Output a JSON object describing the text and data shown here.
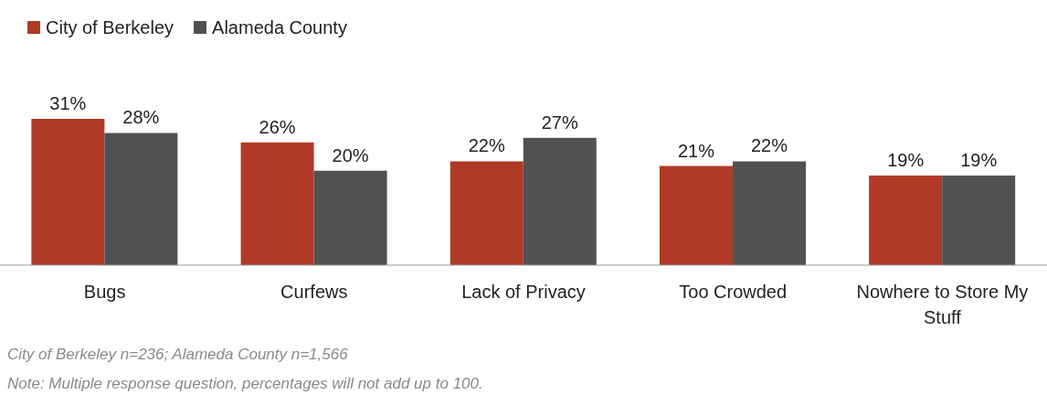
{
  "chart_data": {
    "type": "bar",
    "categories": [
      "Bugs",
      "Curfews",
      "Lack of Privacy",
      "Too Crowded",
      "Nowhere to Store My Stuff"
    ],
    "series": [
      {
        "name": "City of Berkeley",
        "color": "#b03a26",
        "values": [
          31,
          26,
          22,
          21,
          19
        ],
        "value_labels": [
          "31%",
          "26%",
          "22%",
          "21%",
          "19%"
        ]
      },
      {
        "name": "Alameda County",
        "color": "#505153",
        "values": [
          28,
          20,
          27,
          22,
          19
        ],
        "value_labels": [
          "28%",
          "20%",
          "27%",
          "22%",
          "19%"
        ]
      }
    ],
    "legend": "top left",
    "annotations": [
      "City of Berkeley n=236; Alameda County n=1,566",
      "Note: Multiple response question, percentages will not add up to 100."
    ]
  }
}
